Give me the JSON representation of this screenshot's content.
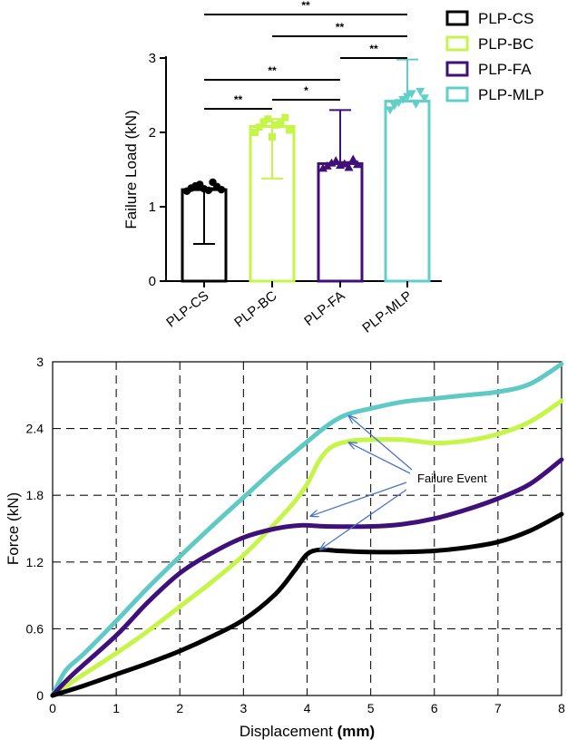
{
  "chart_data": [
    {
      "type": "bar",
      "ylabel": "Failure Load (kN)",
      "xlabel": "",
      "ylim": [
        0,
        3
      ],
      "yticks": [
        "0",
        "1",
        "2",
        "3"
      ],
      "categories": [
        "PLP-CS",
        "PLP-BC",
        "PLP-FA",
        "PLP-MLP"
      ],
      "values": [
        1.23,
        2.08,
        1.58,
        2.42
      ],
      "error_bars": [
        {
          "low": 0.5,
          "high": 1.25
        },
        {
          "low": 1.38,
          "high": 2.18
        },
        {
          "low": 1.6,
          "high": 2.3
        },
        {
          "low": 2.43,
          "high": 2.98
        }
      ],
      "colors": [
        "#000000",
        "#c6f54a",
        "#3f0f7a",
        "#5fd0c9"
      ],
      "markers": [
        "circle",
        "square",
        "triangle",
        "inverted-triangle"
      ],
      "points": [
        [
          1.21,
          1.25,
          1.28,
          1.3,
          1.24,
          1.22,
          1.33,
          1.27,
          1.23
        ],
        [
          2.0,
          2.07,
          2.14,
          2.18,
          1.94,
          2.1,
          2.12,
          2.2,
          2.03
        ],
        [
          1.52,
          1.55,
          1.59,
          1.62,
          1.56,
          1.58,
          1.53,
          1.64,
          1.57
        ],
        [
          2.3,
          2.36,
          2.4,
          2.44,
          2.48,
          2.52,
          2.38,
          2.55,
          2.46
        ]
      ],
      "legend": [
        "PLP-CS",
        "PLP-BC",
        "PLP-FA",
        "PLP-MLP"
      ],
      "legend_position": "top-right",
      "significance": [
        {
          "from": "PLP-CS",
          "to": "PLP-MLP",
          "label": "**"
        },
        {
          "from": "PLP-BC",
          "to": "PLP-MLP",
          "label": "**"
        },
        {
          "from": "PLP-FA",
          "to": "PLP-MLP",
          "label": "**"
        },
        {
          "from": "PLP-CS",
          "to": "PLP-FA",
          "label": "**"
        },
        {
          "from": "PLP-CS",
          "to": "PLP-BC",
          "label": "**"
        },
        {
          "from": "PLP-BC",
          "to": "PLP-FA",
          "label": "*"
        }
      ]
    },
    {
      "type": "line",
      "xlabel_main": "Displacement ",
      "xlabel_unit": "(mm)",
      "ylabel": "Force (kN)",
      "xlim": [
        0,
        8
      ],
      "ylim": [
        0,
        3
      ],
      "xticks": [
        "0",
        "1",
        "2",
        "3",
        "4",
        "5",
        "6",
        "7",
        "8"
      ],
      "yticks": [
        "0",
        "0.6",
        "1.2",
        "1.8",
        "2.4",
        "3"
      ],
      "grid": "dashed",
      "annotation": "Failure Event",
      "series": [
        {
          "name": "PLP-MLP",
          "color": "#5fc9c4",
          "x": [
            0,
            0.2,
            0.5,
            1,
            1.5,
            2,
            2.5,
            3,
            3.5,
            4,
            4.3,
            4.6,
            5,
            5.5,
            6,
            6.5,
            7,
            7.5,
            8
          ],
          "y": [
            0,
            0.22,
            0.38,
            0.67,
            0.97,
            1.25,
            1.52,
            1.78,
            2.04,
            2.28,
            2.42,
            2.52,
            2.58,
            2.64,
            2.67,
            2.7,
            2.73,
            2.8,
            2.98
          ]
        },
        {
          "name": "PLP-BC",
          "color": "#c6f54a",
          "x": [
            0,
            0.3,
            1,
            1.5,
            2,
            2.5,
            3,
            3.5,
            3.8,
            4,
            4.2,
            4.4,
            4.7,
            5,
            5.5,
            6,
            6.5,
            7,
            7.5,
            8
          ],
          "y": [
            0,
            0.12,
            0.38,
            0.58,
            0.8,
            1.02,
            1.26,
            1.55,
            1.74,
            1.9,
            2.12,
            2.24,
            2.29,
            2.3,
            2.3,
            2.27,
            2.29,
            2.35,
            2.46,
            2.65
          ]
        },
        {
          "name": "PLP-FA",
          "color": "#3f0f7a",
          "x": [
            0,
            0.3,
            1,
            1.5,
            2,
            2.5,
            3,
            3.5,
            3.9,
            4.3,
            5,
            5.5,
            6,
            6.5,
            7,
            7.5,
            8
          ],
          "y": [
            0,
            0.18,
            0.54,
            0.84,
            1.1,
            1.28,
            1.42,
            1.5,
            1.53,
            1.52,
            1.52,
            1.54,
            1.59,
            1.67,
            1.77,
            1.9,
            2.12
          ]
        },
        {
          "name": "PLP-CS",
          "color": "#000000",
          "x": [
            0,
            0.5,
            1,
            1.5,
            2,
            2.5,
            3,
            3.5,
            3.8,
            4,
            4.2,
            4.5,
            5,
            5.5,
            6,
            6.5,
            7,
            7.5,
            8
          ],
          "y": [
            0,
            0.09,
            0.19,
            0.29,
            0.4,
            0.53,
            0.68,
            0.91,
            1.12,
            1.27,
            1.31,
            1.3,
            1.29,
            1.29,
            1.3,
            1.33,
            1.38,
            1.48,
            1.63
          ]
        }
      ],
      "failure_events": [
        {
          "series": "PLP-MLP",
          "x": 4.6,
          "y": 2.53
        },
        {
          "series": "PLP-BC",
          "x": 4.6,
          "y": 2.29
        },
        {
          "series": "PLP-FA",
          "x": 4.0,
          "y": 1.63
        },
        {
          "series": "PLP-CS",
          "x": 4.15,
          "y": 1.33
        }
      ]
    }
  ]
}
